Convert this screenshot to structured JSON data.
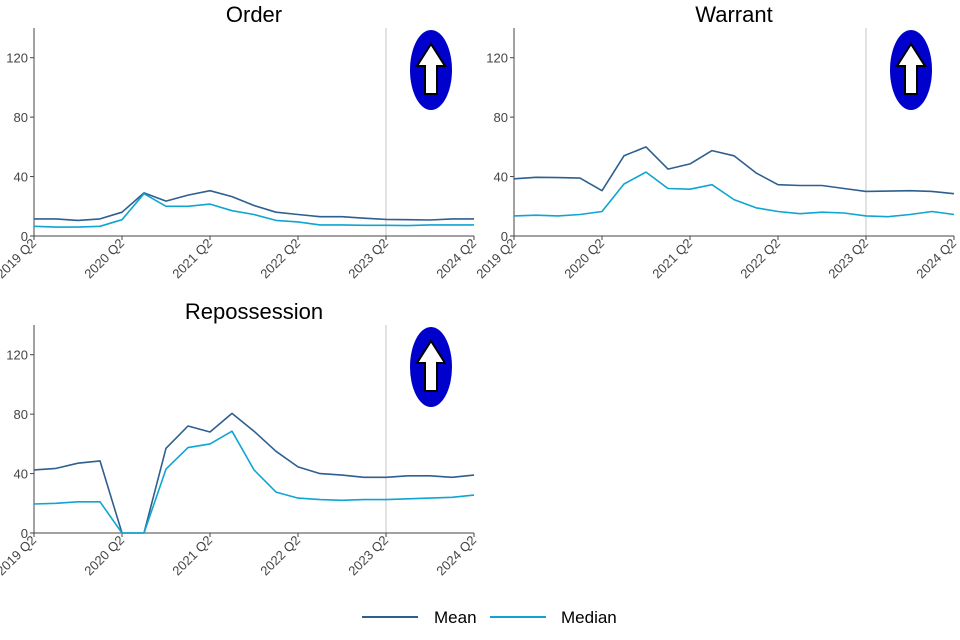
{
  "chart_data": [
    {
      "type": "line",
      "title": "Order",
      "x": [
        "2019 Q2",
        "2019 Q3",
        "2019 Q4",
        "2020 Q1",
        "2020 Q2",
        "2020 Q3",
        "2020 Q4",
        "2021 Q1",
        "2021 Q2",
        "2021 Q3",
        "2021 Q4",
        "2022 Q1",
        "2022 Q2",
        "2022 Q3",
        "2022 Q4",
        "2023 Q1",
        "2023 Q2",
        "2023 Q3",
        "2023 Q4",
        "2024 Q1",
        "2024 Q2"
      ],
      "xticks": [
        "2019 Q2",
        "2020 Q2",
        "2021 Q2",
        "2022 Q2",
        "2023 Q2",
        "2024 Q2"
      ],
      "ylim": [
        0,
        140
      ],
      "yticks": [
        "0",
        "40",
        "80",
        "120"
      ],
      "marker_x": "2023 Q2",
      "series": [
        {
          "name": "Mean",
          "values": [
            11.5,
            11.5,
            10.5,
            11.5,
            16,
            29,
            23.5,
            27.5,
            30.5,
            26.5,
            20.5,
            16,
            14.5,
            13,
            13,
            12,
            11.2,
            11,
            10.8,
            11.5,
            11.5
          ]
        },
        {
          "name": "Median",
          "values": [
            6.5,
            6,
            6,
            6.5,
            11,
            28.5,
            20,
            20,
            21.5,
            17,
            14.5,
            10.5,
            9.5,
            7.5,
            7.5,
            7.2,
            7.2,
            7,
            7.5,
            7.5,
            7.5
          ]
        }
      ]
    },
    {
      "type": "line",
      "title": "Warrant",
      "x": [
        "2019 Q2",
        "2019 Q3",
        "2019 Q4",
        "2020 Q1",
        "2020 Q2",
        "2020 Q3",
        "2020 Q4",
        "2021 Q1",
        "2021 Q2",
        "2021 Q3",
        "2021 Q4",
        "2022 Q1",
        "2022 Q2",
        "2022 Q3",
        "2022 Q4",
        "2023 Q1",
        "2023 Q2",
        "2023 Q3",
        "2023 Q4",
        "2024 Q1",
        "2024 Q2"
      ],
      "xticks": [
        "2019 Q2",
        "2020 Q2",
        "2021 Q2",
        "2022 Q2",
        "2023 Q2",
        "2024 Q2"
      ],
      "ylim": [
        0,
        140
      ],
      "yticks": [
        "0",
        "40",
        "80",
        "120"
      ],
      "marker_x": "2023 Q2",
      "series": [
        {
          "name": "Mean",
          "values": [
            38.5,
            39.5,
            39.3,
            39,
            30.5,
            54,
            60,
            45,
            48.5,
            57.5,
            54,
            42.5,
            34.5,
            34,
            34,
            32,
            30,
            30.2,
            30.5,
            30,
            28.5
          ]
        },
        {
          "name": "Median",
          "values": [
            13.5,
            14,
            13.5,
            14.5,
            16.5,
            35,
            43,
            32,
            31.5,
            34.5,
            24.5,
            19,
            16.5,
            15,
            16,
            15.5,
            13.5,
            13,
            14.5,
            16.5,
            14.5
          ]
        }
      ]
    },
    {
      "type": "line",
      "title": "Repossession",
      "x": [
        "2019 Q2",
        "2019 Q3",
        "2019 Q4",
        "2020 Q1",
        "2020 Q2",
        "2020 Q3",
        "2020 Q4",
        "2021 Q1",
        "2021 Q2",
        "2021 Q3",
        "2021 Q4",
        "2022 Q1",
        "2022 Q2",
        "2022 Q3",
        "2022 Q4",
        "2023 Q1",
        "2023 Q2",
        "2023 Q3",
        "2023 Q4",
        "2024 Q1",
        "2024 Q2"
      ],
      "xticks": [
        "2019 Q2",
        "2020 Q2",
        "2021 Q2",
        "2022 Q2",
        "2023 Q2",
        "2024 Q2"
      ],
      "ylim": [
        0,
        140
      ],
      "yticks": [
        "0",
        "40",
        "80",
        "120"
      ],
      "marker_x": "2023 Q2",
      "series": [
        {
          "name": "Mean",
          "values": [
            42.5,
            43.5,
            47,
            48.5,
            0,
            0,
            57,
            72,
            68,
            80.5,
            68.5,
            55,
            44.5,
            40,
            39,
            37.5,
            37.5,
            38.5,
            38.5,
            37.5,
            39
          ]
        },
        {
          "name": "Median",
          "values": [
            19.5,
            20,
            21,
            21,
            0,
            0,
            43,
            57.5,
            60,
            68.5,
            42.5,
            27.5,
            23.5,
            22.5,
            22,
            22.5,
            22.5,
            23,
            23.5,
            24,
            25.5
          ]
        }
      ]
    }
  ],
  "legend": {
    "items": [
      {
        "label": "Mean",
        "color": "#2e5f8f"
      },
      {
        "label": "Median",
        "color": "#0fa5d3"
      }
    ]
  },
  "colors": {
    "axis": "#444444",
    "marker_line": "#c4c4c4",
    "arrow_badge": "#0000cc"
  },
  "icons": [
    "up-arrow-icon"
  ]
}
